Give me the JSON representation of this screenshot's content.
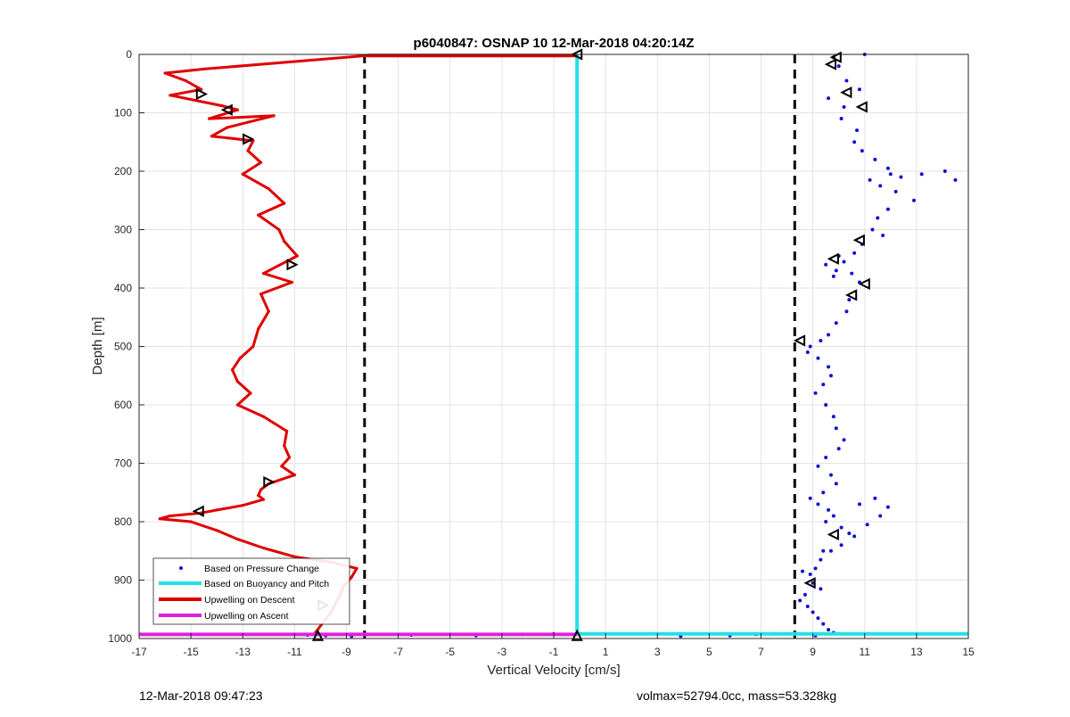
{
  "chart_data": {
    "type": "scatter",
    "title": "p6040847: OSNAP 10 12-Mar-2018 04:20:14Z",
    "xlabel": "Vertical Velocity [cm/s]",
    "ylabel": "Depth [m]",
    "xlim": [
      -17,
      15
    ],
    "ylim": [
      0,
      1000
    ],
    "y_reversed": true,
    "grid": true,
    "x_ticks": [
      -17,
      -15,
      -13,
      -11,
      -9,
      -7,
      -5,
      -3,
      -1,
      1,
      3,
      5,
      7,
      9,
      11,
      13,
      15
    ],
    "y_ticks": [
      0,
      100,
      200,
      300,
      400,
      500,
      600,
      700,
      800,
      900,
      1000
    ],
    "legend": {
      "placement": "bottom-left",
      "entries": [
        {
          "label": "Based on Pressure Change",
          "style": "dot",
          "color": "#1010d0"
        },
        {
          "label": "Based on Buoyancy and Pitch",
          "style": "line",
          "color": "#22e0e8"
        },
        {
          "label": "Upwelling on Descent",
          "style": "line",
          "color": "#e00000"
        },
        {
          "label": "Upwelling on Ascent",
          "style": "line",
          "color": "#e020e0"
        }
      ]
    },
    "series": [
      {
        "name": "Upwelling on Descent",
        "type": "line",
        "color": "#e00000",
        "x": [
          -8.2,
          -14.5,
          -16.0,
          -15.2,
          -14.6,
          -15.8,
          -13.8,
          -13.2,
          -14.3,
          -11.8,
          -13.6,
          -14.2,
          -12.6,
          -12.8,
          -12.3,
          -13.0,
          -12.0,
          -11.4,
          -12.4,
          -11.6,
          -11.4,
          -10.9,
          -12.2,
          -11.1,
          -12.3,
          -12.0,
          -12.4,
          -12.6,
          -13.1,
          -13.4,
          -13.2,
          -12.7,
          -13.2,
          -12.2,
          -11.3,
          -11.4,
          -11.2,
          -11.5,
          -11.0,
          -12.0,
          -12.3,
          -12.4,
          -12.2,
          -13.0,
          -14.0,
          -14.6,
          -15.8,
          -16.2,
          -15.0,
          -14.0,
          -13.2,
          -12.2,
          -11.0,
          -9.5,
          -8.6,
          -8.8,
          -9.1,
          -9.3,
          -9.6,
          -10.2
        ],
        "y": [
          2,
          25,
          32,
          45,
          60,
          70,
          88,
          95,
          110,
          105,
          125,
          140,
          148,
          165,
          185,
          205,
          230,
          255,
          275,
          300,
          320,
          345,
          375,
          390,
          410,
          440,
          470,
          500,
          520,
          540,
          560,
          580,
          600,
          620,
          645,
          670,
          690,
          705,
          720,
          735,
          745,
          755,
          762,
          772,
          780,
          785,
          790,
          795,
          800,
          815,
          830,
          845,
          860,
          870,
          880,
          895,
          910,
          930,
          955,
          990
        ]
      },
      {
        "name": "Based on Pressure Change",
        "type": "scatter",
        "color": "#1010d0",
        "x": [
          9.8,
          10.0,
          10.3,
          10.8,
          9.6,
          10.2,
          10.1,
          10.7,
          10.6,
          10.9,
          11.4,
          11.9,
          12.0,
          11.2,
          11.6,
          12.2,
          12.4,
          13.2,
          14.1,
          14.5,
          12.9,
          11.9,
          11.5,
          11.3,
          11.7,
          10.9,
          10.6,
          10.2,
          9.9,
          10.5,
          9.8,
          9.5,
          10.0,
          10.8,
          10.4,
          10.3,
          9.9,
          9.6,
          9.3,
          8.9,
          8.8,
          9.2,
          9.6,
          9.7,
          9.4,
          9.1,
          9.5,
          9.8,
          9.9,
          10.2,
          10.0,
          9.5,
          9.2,
          9.7,
          9.9,
          9.4,
          8.9,
          9.2,
          9.6,
          9.8,
          9.5,
          10.1,
          10.4,
          10.8,
          11.4,
          11.9,
          11.6,
          11.1,
          10.6,
          10.1,
          9.7,
          9.3,
          9.1,
          8.9,
          9.0,
          9.3,
          8.7,
          8.5,
          8.8,
          9.0,
          9.2,
          9.4,
          9.6,
          9.8,
          9.1,
          8.6,
          9.4,
          3.9,
          5.8,
          6.8,
          7.5,
          -10.5,
          -9.8,
          -8.8,
          -6.5,
          -4.0,
          -2.2,
          -1.0,
          11.0
        ],
        "y": [
          5,
          20,
          45,
          60,
          75,
          90,
          110,
          130,
          150,
          165,
          180,
          195,
          205,
          215,
          225,
          235,
          210,
          205,
          200,
          215,
          250,
          265,
          280,
          300,
          310,
          325,
          340,
          355,
          370,
          375,
          380,
          360,
          345,
          390,
          420,
          440,
          460,
          480,
          490,
          500,
          510,
          520,
          535,
          550,
          565,
          580,
          600,
          620,
          640,
          660,
          675,
          690,
          705,
          720,
          735,
          750,
          760,
          770,
          780,
          790,
          800,
          810,
          820,
          770,
          760,
          775,
          790,
          805,
          825,
          840,
          850,
          865,
          880,
          890,
          905,
          915,
          925,
          935,
          945,
          955,
          965,
          975,
          985,
          990,
          995,
          885,
          850,
          996,
          995,
          993,
          992,
          994,
          995,
          996,
          994,
          995,
          993,
          992,
          0
        ]
      },
      {
        "name": "Based on Buoyancy and Pitch",
        "type": "line",
        "color": "#22e0e8",
        "x": [
          -0.1,
          -0.1
        ],
        "y": [
          0,
          995
        ]
      },
      {
        "name": "Descent surface segment",
        "type": "line",
        "color": "#e00000",
        "x": [
          -8.2,
          -0.1
        ],
        "y": [
          2,
          2
        ]
      },
      {
        "name": "Bottom segment",
        "type": "line",
        "color": "#22e0e8",
        "x": [
          -0.1,
          15
        ],
        "y": [
          992,
          992
        ]
      },
      {
        "name": "Upwelling on Ascent",
        "type": "line",
        "color": "#e020e0",
        "x": [
          -17,
          -0.1
        ],
        "y": [
          993,
          993
        ]
      }
    ],
    "reference_lines": [
      {
        "x": -8.3,
        "color": "#000000",
        "style": "dashed"
      },
      {
        "x": 8.3,
        "color": "#000000",
        "style": "dashed"
      }
    ],
    "markers": [
      {
        "x": -14.6,
        "y": 68,
        "dir": "right"
      },
      {
        "x": -13.6,
        "y": 95,
        "dir": "left"
      },
      {
        "x": -12.8,
        "y": 145,
        "dir": "right"
      },
      {
        "x": -11.1,
        "y": 360,
        "dir": "right"
      },
      {
        "x": -12.0,
        "y": 732,
        "dir": "right"
      },
      {
        "x": -14.7,
        "y": 782,
        "dir": "left"
      },
      {
        "x": -9.9,
        "y": 943,
        "dir": "right"
      },
      {
        "x": -10.1,
        "y": 995,
        "dir": "up"
      },
      {
        "x": -0.1,
        "y": 0,
        "dir": "left"
      },
      {
        "x": -0.1,
        "y": 995,
        "dir": "up"
      },
      {
        "x": 9.9,
        "y": 5,
        "dir": "left"
      },
      {
        "x": 9.7,
        "y": 17,
        "dir": "left"
      },
      {
        "x": 10.3,
        "y": 65,
        "dir": "left"
      },
      {
        "x": 10.9,
        "y": 90,
        "dir": "left"
      },
      {
        "x": 10.8,
        "y": 318,
        "dir": "left"
      },
      {
        "x": 9.8,
        "y": 350,
        "dir": "left"
      },
      {
        "x": 11.0,
        "y": 393,
        "dir": "left"
      },
      {
        "x": 10.5,
        "y": 412,
        "dir": "left"
      },
      {
        "x": 8.5,
        "y": 490,
        "dir": "left"
      },
      {
        "x": 9.8,
        "y": 822,
        "dir": "left"
      },
      {
        "x": 8.9,
        "y": 905,
        "dir": "left"
      }
    ]
  },
  "footer": {
    "timestamp": "12-Mar-2018 09:47:23",
    "specs": "volmax=52794.0cc, mass=53.328kg"
  }
}
